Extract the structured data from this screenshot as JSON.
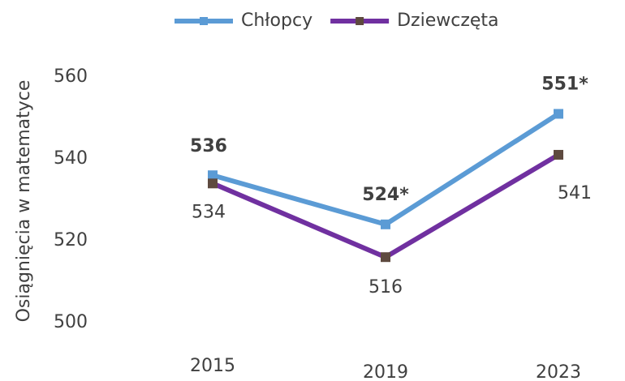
{
  "chart_data": {
    "type": "line",
    "y_label": "Osiągnięcia w matematyce",
    "categories": [
      "2015",
      "2019",
      "2023"
    ],
    "series": [
      {
        "name": "Chłopcy",
        "color": "#5b9bd5",
        "marker_color": "#5b9bd5",
        "values": [
          536,
          524,
          551
        ],
        "value_labels": [
          "536",
          "524*",
          "551*"
        ]
      },
      {
        "name": "Dziewczęta",
        "color": "#7030a0",
        "marker_color": "#5e4a3f",
        "values": [
          534,
          516,
          541
        ]
      }
    ],
    "ylim": [
      500,
      560
    ],
    "yticks": [
      500,
      520,
      540,
      560
    ],
    "grid": false,
    "legend": "top"
  }
}
